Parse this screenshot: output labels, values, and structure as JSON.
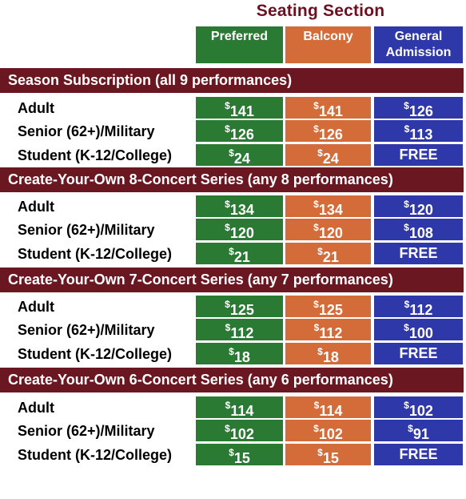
{
  "title": "Seating Section",
  "columns": [
    "Preferred",
    "Balcony",
    "General Admission"
  ],
  "colors": {
    "preferred": "#2a7a34",
    "balcony": "#d46c3a",
    "general_admission": "#2f38a8",
    "section_bar": "#6a1722",
    "title": "#6b1020"
  },
  "sections": [
    {
      "label": "Season Subscription (all 9 performances)",
      "rows": [
        {
          "label": "Adult",
          "preferred": "141",
          "balcony": "141",
          "ga": "126"
        },
        {
          "label": "Senior (62+)/Military",
          "preferred": "126",
          "balcony": "126",
          "ga": "113"
        },
        {
          "label": "Student (K-12/College)",
          "preferred": "24",
          "balcony": "24",
          "ga": "FREE"
        }
      ]
    },
    {
      "label": "Create-Your-Own 8-Concert Series (any 8 performances)",
      "rows": [
        {
          "label": "Adult",
          "preferred": "134",
          "balcony": "134",
          "ga": "120"
        },
        {
          "label": "Senior (62+)/Military",
          "preferred": "120",
          "balcony": "120",
          "ga": "108"
        },
        {
          "label": "Student (K-12/College)",
          "preferred": "21",
          "balcony": "21",
          "ga": "FREE"
        }
      ]
    },
    {
      "label": "Create-Your-Own 7-Concert Series (any 7 performances)",
      "rows": [
        {
          "label": "Adult",
          "preferred": "125",
          "balcony": "125",
          "ga": "112"
        },
        {
          "label": "Senior (62+)/Military",
          "preferred": "112",
          "balcony": "112",
          "ga": "100"
        },
        {
          "label": "Student (K-12/College)",
          "preferred": "18",
          "balcony": "18",
          "ga": "FREE"
        }
      ]
    },
    {
      "label": "Create-Your-Own 6-Concert Series (any 6 performances)",
      "rows": [
        {
          "label": "Adult",
          "preferred": "114",
          "balcony": "114",
          "ga": "102"
        },
        {
          "label": "Senior (62+)/Military",
          "preferred": "102",
          "balcony": "102",
          "ga": "91"
        },
        {
          "label": "Student (K-12/College)",
          "preferred": "15",
          "balcony": "15",
          "ga": "FREE"
        }
      ]
    }
  ]
}
